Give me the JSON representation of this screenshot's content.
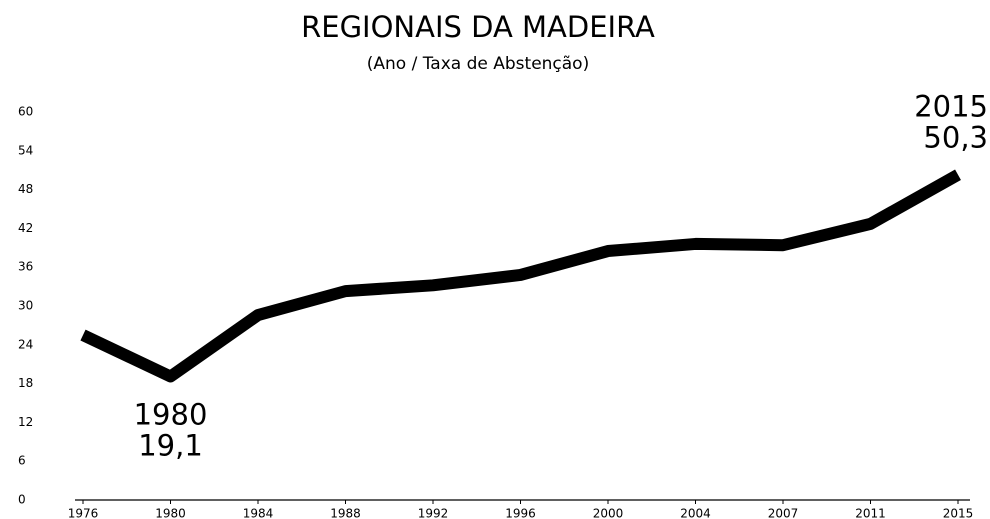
{
  "chart_data": {
    "type": "line",
    "title": "REGIONAIS DA MADEIRA",
    "subtitle": "(Ano / Taxa de Abstenção)",
    "categories": [
      "1976",
      "1980",
      "1984",
      "1988",
      "1992",
      "1996",
      "2000",
      "2004",
      "2007",
      "2011",
      "2015"
    ],
    "values": [
      25.5,
      19.1,
      28.6,
      32.3,
      33.2,
      34.8,
      38.5,
      39.6,
      39.4,
      42.7,
      50.3
    ],
    "value_labels": [
      null,
      "19,1",
      null,
      null,
      null,
      null,
      null,
      null,
      null,
      null,
      "50,3"
    ],
    "color": "#000000",
    "ylim": [
      0,
      60
    ],
    "yticks": [
      0,
      6,
      12,
      18,
      24,
      30,
      36,
      42,
      48,
      54,
      60
    ],
    "grid": false
  }
}
